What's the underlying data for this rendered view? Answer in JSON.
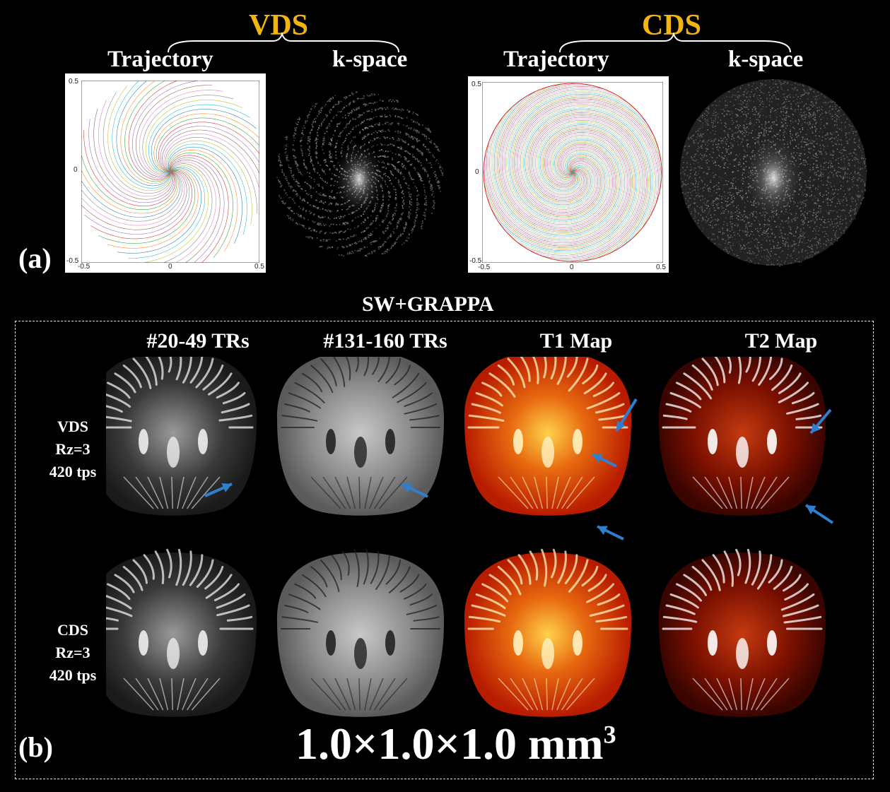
{
  "panel_a": {
    "letter": "(a)",
    "groups": [
      {
        "name": "VDS",
        "color": "#f2b50f",
        "left_label": "Trajectory",
        "right_label": "k-space",
        "axis_ticks": {
          "x_left": "-0.5",
          "x_mid": "0",
          "x_right": "0.5",
          "y_top": "0.5",
          "y_mid": "0",
          "y_bottom": "-0.5"
        }
      },
      {
        "name": "CDS",
        "color": "#f2b50f",
        "left_label": "Trajectory",
        "right_label": "k-space",
        "axis_ticks": {
          "x_left": "-0.5",
          "x_mid": "0",
          "x_right": "0.5",
          "y_top": "0.5",
          "y_mid": "0",
          "y_bottom": "-0.5"
        }
      }
    ]
  },
  "panel_b": {
    "letter": "(b)",
    "title": "SW+GRAPPA",
    "columns": [
      "#20-49 TRs",
      "#131-160 TRs",
      "T1 Map",
      "T2 Map"
    ],
    "rows": [
      {
        "lines": [
          "VDS",
          "Rz=3",
          "420 tps"
        ]
      },
      {
        "lines": [
          "CDS",
          "Rz=3",
          "420 tps"
        ]
      }
    ],
    "resolution": "1.0×1.0×1.0 mm",
    "resolution_sup": "3",
    "arrow_color": "#2f7fd0"
  }
}
